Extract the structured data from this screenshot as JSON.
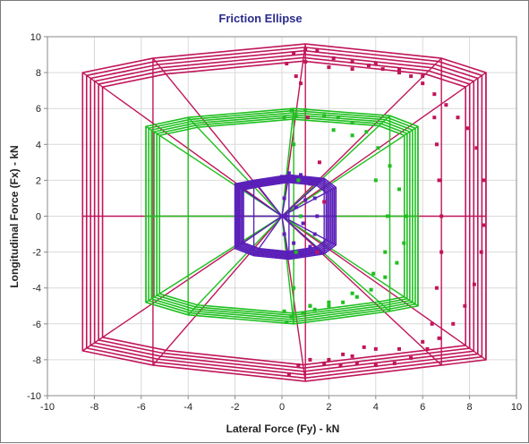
{
  "chart_data": {
    "type": "scatter",
    "title": "Friction Ellipse",
    "xlabel": "Lateral Force (Fy) - kN",
    "ylabel": "Longitudinal Force (Fx) - kN",
    "xlim": [
      -10,
      10
    ],
    "ylim": [
      -10,
      10
    ],
    "xticks": [
      "-10",
      "-8",
      "-6",
      "-4",
      "-2",
      "0",
      "2",
      "4",
      "6",
      "8",
      "10"
    ],
    "yticks": [
      "-10",
      "-8",
      "-6",
      "-4",
      "-2",
      "0",
      "2",
      "4",
      "6",
      "8",
      "10"
    ],
    "grid": true,
    "legend": "none",
    "colors": {
      "outer": "#c0155a",
      "middle": "#1fbf1f",
      "inner": "#5a1fb8",
      "grid": "#d9d9d9",
      "title": "#2b2b8c"
    },
    "ellipse_sets": [
      {
        "color_key": "outer",
        "center": [
          0,
          0
        ],
        "hull": [
          [
            -8.5,
            8.0
          ],
          [
            -5.5,
            8.8
          ],
          [
            1.0,
            9.6
          ],
          [
            6.8,
            8.8
          ],
          [
            8.7,
            8.0
          ],
          [
            8.7,
            -8.0
          ],
          [
            6.8,
            -8.3
          ],
          [
            1.0,
            -9.2
          ],
          [
            -5.5,
            -8.3
          ],
          [
            -8.5,
            -7.5
          ]
        ],
        "scales": [
          1.0,
          0.98,
          0.96,
          0.94,
          0.92,
          0.9
        ]
      },
      {
        "color_key": "middle",
        "center": [
          0,
          0
        ],
        "hull": [
          [
            -5.8,
            5.0
          ],
          [
            -4.0,
            5.5
          ],
          [
            0.5,
            6.0
          ],
          [
            4.6,
            5.6
          ],
          [
            5.8,
            5.0
          ],
          [
            5.8,
            -5.0
          ],
          [
            4.6,
            -5.3
          ],
          [
            0.5,
            -6.0
          ],
          [
            -4.0,
            -5.5
          ],
          [
            -5.8,
            -4.8
          ]
        ],
        "scales": [
          1.0,
          0.98,
          0.96,
          0.94,
          0.92,
          0.9
        ]
      },
      {
        "color_key": "inner",
        "center": [
          0,
          0
        ],
        "hull": [
          [
            -2.0,
            1.8
          ],
          [
            -1.2,
            2.0
          ],
          [
            0.3,
            2.3
          ],
          [
            1.8,
            2.1
          ],
          [
            2.3,
            1.6
          ],
          [
            2.3,
            -1.6
          ],
          [
            1.8,
            -2.1
          ],
          [
            0.3,
            -2.4
          ],
          [
            -1.2,
            -2.2
          ],
          [
            -2.0,
            -1.8
          ]
        ],
        "scales": [
          1.0,
          0.97,
          0.94,
          0.91,
          0.88,
          0.85,
          0.82
        ]
      }
    ],
    "scatter_series": [
      {
        "color_key": "outer",
        "points": [
          [
            0.2,
            8.5
          ],
          [
            0.5,
            9.1
          ],
          [
            1.0,
            9.3
          ],
          [
            1.5,
            9.2
          ],
          [
            2.2,
            8.8
          ],
          [
            3.0,
            8.6
          ],
          [
            3.7,
            8.4
          ],
          [
            4.3,
            8.2
          ],
          [
            5.0,
            8.0
          ],
          [
            5.5,
            7.8
          ],
          [
            6.0,
            7.4
          ],
          [
            6.5,
            6.8
          ],
          [
            7.0,
            6.2
          ],
          [
            7.5,
            5.5
          ],
          [
            7.9,
            4.9
          ],
          [
            8.3,
            3.8
          ],
          [
            8.6,
            2.0
          ],
          [
            8.6,
            -0.5
          ],
          [
            8.5,
            -2.0
          ],
          [
            8.2,
            -3.8
          ],
          [
            7.8,
            -5.0
          ],
          [
            7.3,
            -6.0
          ],
          [
            6.7,
            -6.8
          ],
          [
            6.2,
            -7.4
          ],
          [
            5.5,
            -7.9
          ],
          [
            4.8,
            -8.2
          ],
          [
            4.0,
            -8.3
          ],
          [
            3.2,
            -8.2
          ],
          [
            2.5,
            -8.3
          ],
          [
            1.8,
            -8.2
          ],
          [
            1.2,
            -8.0
          ],
          [
            0.7,
            -8.3
          ],
          [
            0.3,
            -8.8
          ],
          [
            1.0,
            8.6
          ],
          [
            2.0,
            8.3
          ],
          [
            3.0,
            8.2
          ],
          [
            4.0,
            8.5
          ],
          [
            5.0,
            8.2
          ],
          [
            6.0,
            7.8
          ],
          [
            6.5,
            5.5
          ],
          [
            6.6,
            4.0
          ],
          [
            6.7,
            2.0
          ],
          [
            6.8,
            0.0
          ],
          [
            6.8,
            -2.0
          ],
          [
            6.6,
            -4.0
          ],
          [
            6.4,
            -6.0
          ],
          [
            6.0,
            -7.0
          ],
          [
            5.0,
            -7.4
          ],
          [
            4.0,
            -7.4
          ],
          [
            3.0,
            -7.8
          ],
          [
            2.0,
            -8.0
          ],
          [
            1.2,
            -5.0
          ],
          [
            1.5,
            -2.0
          ],
          [
            1.8,
            0.8
          ],
          [
            1.6,
            3.0
          ],
          [
            1.1,
            5.5
          ],
          [
            0.8,
            7.4
          ],
          [
            0.6,
            7.8
          ],
          [
            2.6,
            -7.7
          ],
          [
            3.5,
            -7.3
          ]
        ]
      },
      {
        "color_key": "middle",
        "points": [
          [
            0.1,
            5.5
          ],
          [
            0.4,
            5.9
          ],
          [
            1.0,
            5.9
          ],
          [
            1.8,
            5.6
          ],
          [
            2.4,
            5.5
          ],
          [
            3.0,
            5.2
          ],
          [
            3.6,
            4.7
          ],
          [
            4.1,
            3.8
          ],
          [
            4.6,
            2.8
          ],
          [
            5.0,
            1.5
          ],
          [
            5.3,
            0.0
          ],
          [
            5.2,
            -1.5
          ],
          [
            4.9,
            -2.6
          ],
          [
            4.4,
            -3.4
          ],
          [
            3.8,
            -4.1
          ],
          [
            3.2,
            -4.5
          ],
          [
            2.6,
            -4.8
          ],
          [
            2.0,
            -5.0
          ],
          [
            1.4,
            -5.2
          ],
          [
            0.9,
            -5.4
          ],
          [
            0.4,
            -5.6
          ],
          [
            0.1,
            -5.3
          ],
          [
            0.5,
            -4.0
          ],
          [
            0.6,
            -2.0
          ],
          [
            0.8,
            0.0
          ],
          [
            0.7,
            2.0
          ],
          [
            0.5,
            4.0
          ],
          [
            2.2,
            4.8
          ],
          [
            3.0,
            4.5
          ],
          [
            4.0,
            2.0
          ],
          [
            4.5,
            0.0
          ],
          [
            4.4,
            -2.0
          ],
          [
            3.9,
            -3.2
          ],
          [
            3.0,
            -4.3
          ],
          [
            2.0,
            -4.8
          ],
          [
            1.2,
            -5.0
          ],
          [
            0.2,
            -5.9
          ],
          [
            0.6,
            5.6
          ]
        ]
      },
      {
        "color_key": "inner",
        "points": [
          [
            0.0,
            2.2
          ],
          [
            0.3,
            2.4
          ],
          [
            0.8,
            2.3
          ],
          [
            1.2,
            1.8
          ],
          [
            1.4,
            1.0
          ],
          [
            1.5,
            0.0
          ],
          [
            1.4,
            -1.0
          ],
          [
            1.2,
            -1.7
          ],
          [
            0.8,
            -2.1
          ],
          [
            0.3,
            -2.3
          ],
          [
            0.0,
            -2.0
          ],
          [
            0.1,
            -1.0
          ],
          [
            0.2,
            0.0
          ],
          [
            0.1,
            1.0
          ],
          [
            0.6,
            0.5
          ],
          [
            0.9,
            -0.4
          ],
          [
            1.0,
            0.9
          ],
          [
            0.5,
            -1.5
          ]
        ]
      }
    ]
  }
}
